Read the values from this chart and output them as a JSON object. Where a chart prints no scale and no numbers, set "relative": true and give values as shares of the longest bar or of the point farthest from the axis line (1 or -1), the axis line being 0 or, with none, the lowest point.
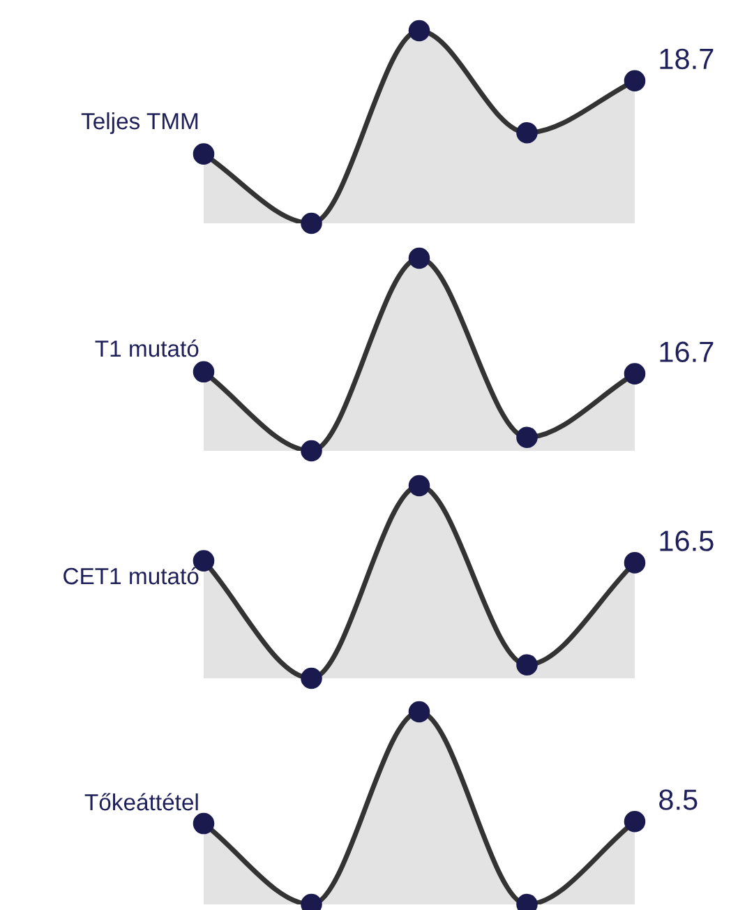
{
  "chart_data": [
    {
      "type": "area",
      "ylabel": "Teljes TMM",
      "categories": [
        null,
        null,
        null,
        null,
        null
      ],
      "relative": true,
      "values": [
        0.36,
        0,
        1,
        0.47,
        0.74
      ],
      "color": "#e3e3e3",
      "annotations": [
        "18.7"
      ],
      "marker": "circle"
    },
    {
      "type": "area",
      "ylabel": "T1 mutató",
      "categories": [
        null,
        null,
        null,
        null,
        null
      ],
      "relative": true,
      "values": [
        0.41,
        0,
        1,
        0.07,
        0.4
      ],
      "color": "#e3e3e3",
      "annotations": [
        "16.7"
      ],
      "marker": "circle"
    },
    {
      "type": "area",
      "ylabel": "CET1 mutató",
      "categories": [
        null,
        null,
        null,
        null,
        null
      ],
      "relative": true,
      "values": [
        0.61,
        0,
        1,
        0.07,
        0.6
      ],
      "color": "#e3e3e3",
      "annotations": [
        "16.5"
      ],
      "marker": "circle"
    },
    {
      "type": "area",
      "ylabel": "Tőkeáttétel",
      "categories": [
        null,
        null,
        null,
        null,
        null
      ],
      "relative": true,
      "values": [
        0.42,
        0,
        1,
        0,
        0.43
      ],
      "color": "#e3e3e3",
      "annotations": [
        "8.5"
      ],
      "marker": "circle"
    }
  ]
}
